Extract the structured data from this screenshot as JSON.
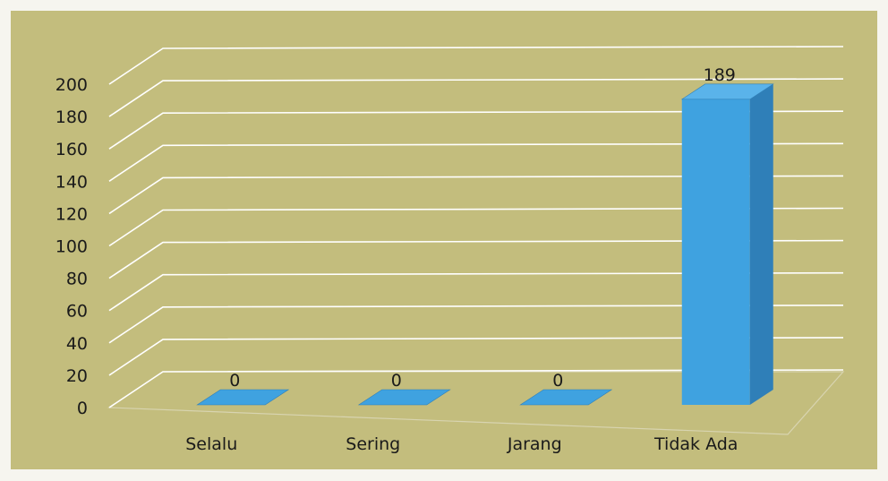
{
  "chart_data": {
    "type": "bar",
    "categories": [
      "Selalu",
      "Sering",
      "Jarang",
      "Tidak Ada"
    ],
    "values": [
      0,
      0,
      0,
      189
    ],
    "data_labels": [
      "0",
      "0",
      "0",
      "189"
    ],
    "ylim": [
      0,
      200
    ],
    "yticks": [
      0,
      20,
      40,
      60,
      80,
      100,
      120,
      140,
      160,
      180,
      200
    ],
    "title": "",
    "xlabel": "",
    "ylabel": "",
    "grid": true,
    "style": "3d-column",
    "colors": {
      "plot_background": "#c3bd7d",
      "page_background": "#f6f5ef",
      "bar_front": "#3fa2e0",
      "bar_top": "#5ab3ea",
      "bar_side": "#2f7fb8",
      "gridline": "#ffffff",
      "text": "#1a1a1a"
    }
  }
}
